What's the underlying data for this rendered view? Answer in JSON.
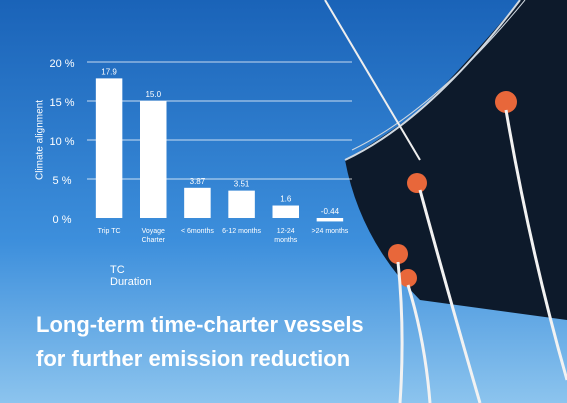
{
  "chart_data": {
    "type": "bar",
    "title": [
      "Long-term time-charter vessels",
      "for further emission reduction"
    ],
    "y_label": "Climate alignment",
    "x_label": "TC Duration",
    "categories": [
      "Trip TC",
      "Voyage Charter",
      "< 6months",
      "6-12 months",
      "12-24 months",
      ">24 months"
    ],
    "values": [
      17.9,
      15.0,
      3.87,
      3.51,
      1.6,
      -0.44
    ],
    "value_labels": [
      "17.9",
      "15.0",
      "3.87",
      "3.51",
      "1.6",
      "-0.44"
    ],
    "color": "#ffffff",
    "ylim": [
      0,
      20
    ],
    "yticks": [
      {
        "value": 0,
        "label": "0 %"
      },
      {
        "value": 5,
        "label": "5 %"
      },
      {
        "value": 10,
        "label": "10 %"
      },
      {
        "value": 15,
        "label": "15 %"
      },
      {
        "value": 20,
        "label": "20 %"
      }
    ],
    "grid": true
  }
}
